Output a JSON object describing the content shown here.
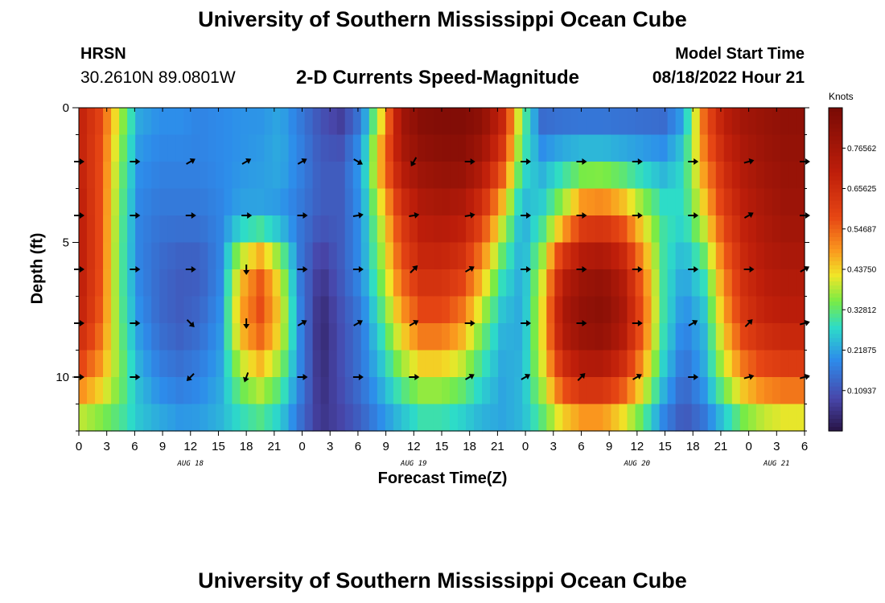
{
  "page": {
    "title": "University of Southern Mississippi Ocean Cube",
    "station": "HRSN",
    "coordinates": "30.2610N  89.0801W",
    "subtitle": "2-D Currents Speed-Magnitude",
    "model_start_label": "Model Start Time",
    "model_start_value": "08/18/2022 Hour 21",
    "footer_title": "University of Southern Mississippi Ocean Cube"
  },
  "chart_data": {
    "type": "heatmap",
    "title": "2-D Currents Speed-Magnitude",
    "xlabel": "Forecast Time(Z)",
    "ylabel": "Depth (ft)",
    "x_range_hours": [
      0,
      78
    ],
    "ylim": [
      0,
      12
    ],
    "x_tick_labels": [
      "0",
      "3",
      "6",
      "9",
      "12",
      "15",
      "18",
      "21",
      "0",
      "3",
      "6",
      "9",
      "12",
      "15",
      "18",
      "21",
      "0",
      "3",
      "6",
      "9",
      "12",
      "15",
      "18",
      "21",
      "0",
      "3",
      "6"
    ],
    "y_ticks": [
      0,
      5,
      10
    ],
    "date_labels": [
      {
        "hour": 12,
        "label": "AUG 18"
      },
      {
        "hour": 36,
        "label": "AUG 19"
      },
      {
        "hour": 60,
        "label": "AUG 20"
      },
      {
        "hour": 75,
        "label": "AUG 21"
      }
    ],
    "colorbar": {
      "units": "Knots",
      "range": [
        0.0,
        0.875
      ],
      "tick_values": [
        0.10937,
        0.21875,
        0.32812,
        0.4375,
        0.54687,
        0.65625,
        0.76562
      ],
      "tick_labels": [
        "0.10937",
        "0.21875",
        "0.32812",
        "0.43750",
        "0.54687",
        "0.65625",
        "0.76562"
      ]
    },
    "depth_levels_ft": [
      0,
      2,
      4,
      6,
      8,
      10,
      12
    ],
    "speed_rows": [
      [
        0.7,
        0.6,
        0.4,
        0.23,
        0.2,
        0.2,
        0.18,
        0.19,
        0.2,
        0.2,
        0.22,
        0.16,
        0.1,
        0.06,
        0.15,
        0.4,
        0.78,
        0.85,
        0.86,
        0.86,
        0.84,
        0.7,
        0.35,
        0.12,
        0.12,
        0.12,
        0.12,
        0.12,
        0.12,
        0.12,
        0.2,
        0.55,
        0.72,
        0.78,
        0.8,
        0.82,
        0.82
      ],
      [
        0.7,
        0.58,
        0.36,
        0.2,
        0.18,
        0.18,
        0.18,
        0.19,
        0.2,
        0.21,
        0.23,
        0.18,
        0.12,
        0.12,
        0.22,
        0.5,
        0.74,
        0.8,
        0.82,
        0.82,
        0.76,
        0.6,
        0.3,
        0.22,
        0.26,
        0.28,
        0.28,
        0.26,
        0.24,
        0.22,
        0.28,
        0.5,
        0.66,
        0.74,
        0.78,
        0.8,
        0.8
      ],
      [
        0.72,
        0.58,
        0.34,
        0.18,
        0.16,
        0.16,
        0.16,
        0.18,
        0.22,
        0.22,
        0.2,
        0.16,
        0.12,
        0.12,
        0.2,
        0.4,
        0.62,
        0.72,
        0.74,
        0.72,
        0.62,
        0.42,
        0.22,
        0.28,
        0.4,
        0.56,
        0.58,
        0.52,
        0.4,
        0.3,
        0.28,
        0.42,
        0.6,
        0.7,
        0.75,
        0.78,
        0.78
      ],
      [
        0.72,
        0.58,
        0.33,
        0.18,
        0.14,
        0.12,
        0.12,
        0.18,
        0.44,
        0.55,
        0.4,
        0.16,
        0.06,
        0.12,
        0.2,
        0.36,
        0.56,
        0.66,
        0.66,
        0.62,
        0.48,
        0.3,
        0.22,
        0.4,
        0.7,
        0.78,
        0.8,
        0.72,
        0.52,
        0.3,
        0.22,
        0.3,
        0.52,
        0.66,
        0.72,
        0.74,
        0.74
      ],
      [
        0.7,
        0.56,
        0.34,
        0.2,
        0.14,
        0.12,
        0.14,
        0.2,
        0.48,
        0.58,
        0.44,
        0.18,
        0.03,
        0.1,
        0.16,
        0.3,
        0.46,
        0.56,
        0.56,
        0.5,
        0.36,
        0.24,
        0.22,
        0.44,
        0.76,
        0.82,
        0.84,
        0.76,
        0.56,
        0.3,
        0.18,
        0.24,
        0.46,
        0.62,
        0.68,
        0.7,
        0.7
      ],
      [
        0.56,
        0.48,
        0.36,
        0.24,
        0.18,
        0.16,
        0.18,
        0.22,
        0.36,
        0.42,
        0.34,
        0.18,
        0.04,
        0.1,
        0.16,
        0.24,
        0.34,
        0.4,
        0.4,
        0.36,
        0.28,
        0.22,
        0.24,
        0.4,
        0.62,
        0.7,
        0.7,
        0.62,
        0.46,
        0.26,
        0.14,
        0.22,
        0.38,
        0.5,
        0.56,
        0.58,
        0.58
      ],
      [
        0.34,
        0.32,
        0.3,
        0.26,
        0.24,
        0.22,
        0.22,
        0.24,
        0.26,
        0.28,
        0.24,
        0.14,
        0.06,
        0.08,
        0.12,
        0.18,
        0.22,
        0.26,
        0.26,
        0.24,
        0.22,
        0.22,
        0.24,
        0.3,
        0.38,
        0.42,
        0.42,
        0.36,
        0.28,
        0.16,
        0.1,
        0.14,
        0.22,
        0.3,
        0.34,
        0.36,
        0.36
      ]
    ],
    "current_vectors": {
      "hours": [
        0,
        6,
        12,
        18,
        24,
        30,
        36,
        42,
        48,
        54,
        60,
        66,
        72,
        78
      ],
      "depth_rows": [
        2,
        4,
        6,
        8,
        10
      ],
      "directions_deg": [
        [
          90,
          90,
          60,
          60,
          60,
          120,
          210,
          90,
          90,
          90,
          90,
          90,
          75,
          90
        ],
        [
          90,
          90,
          90,
          90,
          90,
          80,
          80,
          80,
          90,
          90,
          90,
          90,
          60,
          90
        ],
        [
          90,
          90,
          90,
          180,
          90,
          90,
          45,
          60,
          90,
          90,
          90,
          90,
          90,
          60
        ],
        [
          90,
          90,
          135,
          180,
          60,
          60,
          60,
          90,
          90,
          90,
          90,
          60,
          45,
          75
        ],
        [
          90,
          90,
          225,
          200,
          90,
          90,
          90,
          60,
          60,
          45,
          60,
          90,
          75,
          75
        ]
      ]
    }
  }
}
